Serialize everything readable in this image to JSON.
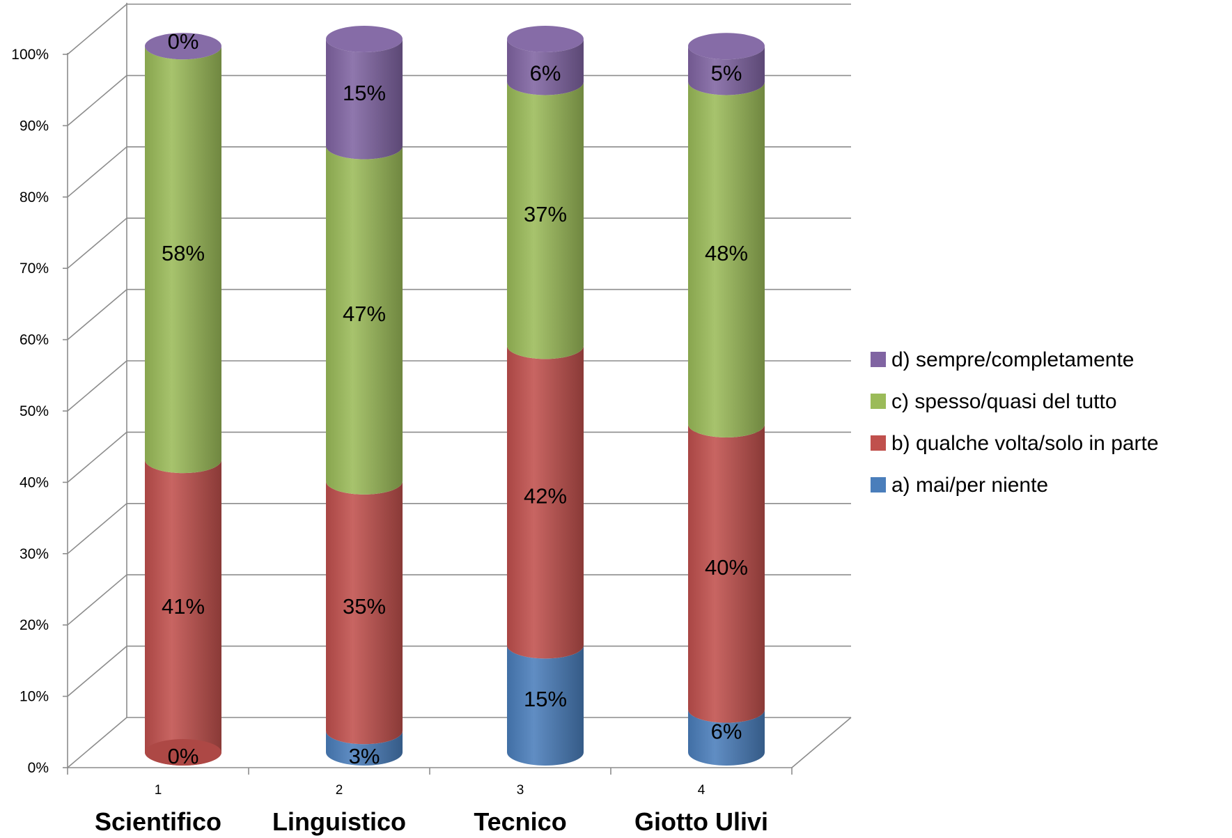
{
  "chart_data": {
    "type": "bar",
    "stacked": true,
    "style": "3d-cylinder",
    "categories": [
      "1",
      "2",
      "3",
      "4"
    ],
    "category_names": [
      "Scientifico",
      "Linguistico",
      "Tecnico",
      "Giotto Ulivi"
    ],
    "series": [
      {
        "name": "a)  mai/per niente",
        "color": "#4a7ebb",
        "values": [
          0,
          3,
          15,
          6
        ],
        "labels": [
          "0%",
          "3%",
          "15%",
          "6%"
        ]
      },
      {
        "name": "b)  qualche volta/solo in parte",
        "color": "#c0504d",
        "values": [
          41,
          35,
          42,
          40
        ],
        "labels": [
          "41%",
          "35%",
          "42%",
          "40%"
        ]
      },
      {
        "name": "c) spesso/quasi del tutto",
        "color": "#9bbb59",
        "values": [
          58,
          47,
          37,
          48
        ],
        "labels": [
          "58%",
          "47%",
          "37%",
          "48%"
        ]
      },
      {
        "name": "d) sempre/completamente",
        "color": "#8064a2",
        "values": [
          0,
          15,
          6,
          5
        ],
        "labels": [
          "0%",
          "15%",
          "6%",
          "5%"
        ]
      }
    ],
    "y_ticks": [
      "0%",
      "10%",
      "20%",
      "30%",
      "40%",
      "50%",
      "60%",
      "70%",
      "80%",
      "90%",
      "100%"
    ],
    "ylim": [
      0,
      100
    ],
    "grid": true,
    "legend_position": "right",
    "legend_order": [
      "d) sempre/completamente",
      "c) spesso/quasi del tutto",
      "b)  qualche volta/solo in parte",
      "a)  mai/per niente"
    ],
    "title": "",
    "xlabel": "",
    "ylabel": ""
  }
}
